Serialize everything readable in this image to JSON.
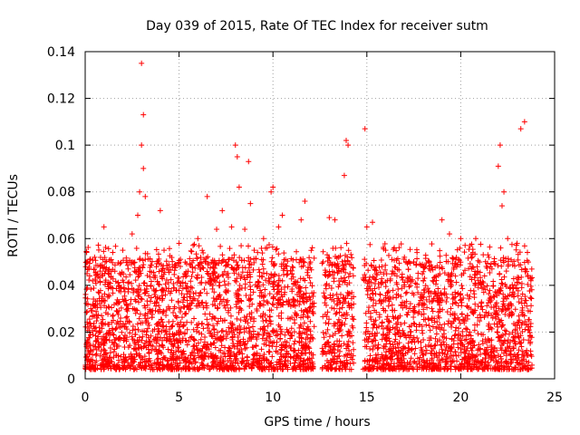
{
  "chart_data": {
    "type": "scatter",
    "title": "Day 039 of 2015, Rate Of TEC Index for receiver sutm",
    "xlabel": "GPS time / hours",
    "ylabel": "ROTI / TECUs",
    "xlim": [
      0,
      25
    ],
    "ylim": [
      0,
      0.14
    ],
    "xticks": [
      0,
      5,
      10,
      15,
      20,
      25
    ],
    "xtick_labels": [
      "0",
      "5",
      "10",
      "15",
      "20",
      "25"
    ],
    "yticks": [
      0,
      0.02,
      0.04,
      0.06,
      0.08,
      0.1,
      0.12,
      0.14
    ],
    "ytick_labels": [
      "0",
      "0.02",
      "0.04",
      "0.06",
      "0.08",
      "0.1",
      "0.12",
      "0.14"
    ],
    "grid": true,
    "marker": "+",
    "marker_color": "#ff0000",
    "data_gaps_hours": [
      [
        12.2,
        12.6
      ],
      [
        14.3,
        14.8
      ]
    ],
    "series": [
      {
        "name": "ROTI",
        "x": [
          0.1,
          0.3,
          0.5,
          0.8,
          1.0,
          1.2,
          1.5,
          1.8,
          2.0,
          2.3,
          2.5,
          2.8,
          2.9,
          3.0,
          3.0,
          3.1,
          3.1,
          3.2,
          3.5,
          4.0,
          4.2,
          4.5,
          5.0,
          5.3,
          5.6,
          6.0,
          6.5,
          6.8,
          7.0,
          7.3,
          7.5,
          7.8,
          8.0,
          8.1,
          8.2,
          8.5,
          8.7,
          8.8,
          9.0,
          9.5,
          9.9,
          10.0,
          10.3,
          10.5,
          11.0,
          11.5,
          11.7,
          12.0,
          12.8,
          13.0,
          13.3,
          13.5,
          13.8,
          13.9,
          14.0,
          14.1,
          14.9,
          15.0,
          15.3,
          15.8,
          16.0,
          16.5,
          17.0,
          17.5,
          18.0,
          18.5,
          19.0,
          19.4,
          19.5,
          20.0,
          20.5,
          20.8,
          21.0,
          21.5,
          22.0,
          22.1,
          22.2,
          22.3,
          22.5,
          23.0,
          23.2,
          23.4,
          23.6
        ],
        "y": [
          0.045,
          0.03,
          0.052,
          0.02,
          0.065,
          0.035,
          0.025,
          0.04,
          0.055,
          0.03,
          0.062,
          0.07,
          0.08,
          0.1,
          0.135,
          0.113,
          0.09,
          0.078,
          0.04,
          0.072,
          0.055,
          0.03,
          0.058,
          0.045,
          0.035,
          0.06,
          0.078,
          0.04,
          0.064,
          0.072,
          0.05,
          0.065,
          0.1,
          0.095,
          0.082,
          0.064,
          0.093,
          0.075,
          0.055,
          0.06,
          0.08,
          0.082,
          0.065,
          0.07,
          0.045,
          0.068,
          0.076,
          0.05,
          0.04,
          0.069,
          0.068,
          0.052,
          0.087,
          0.102,
          0.1,
          0.045,
          0.107,
          0.065,
          0.067,
          0.048,
          0.055,
          0.045,
          0.052,
          0.05,
          0.048,
          0.042,
          0.068,
          0.062,
          0.04,
          0.06,
          0.057,
          0.06,
          0.05,
          0.052,
          0.091,
          0.1,
          0.074,
          0.08,
          0.06,
          0.058,
          0.107,
          0.11,
          0.05
        ]
      }
    ]
  }
}
